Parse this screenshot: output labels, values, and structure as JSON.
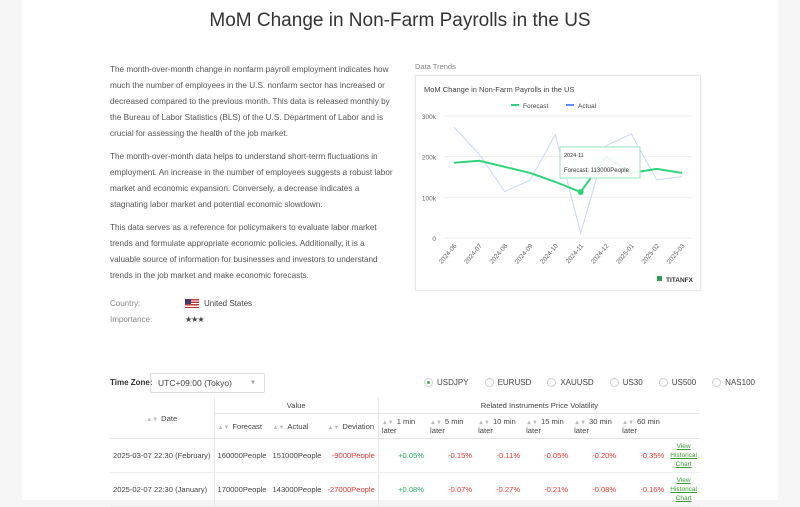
{
  "title": "MoM Change in Non-Farm Payrolls in the US",
  "description": [
    "The month-over-month change in nonfarm payroll employment indicates how much the number of employees in the U.S. nonfarm sector has increased or decreased compared to the previous month. This data is released monthly by the Bureau of Labor Statistics (BLS) of the U.S. Department of Labor and is crucial for assessing the health of the job market.",
    "The month-over-month data helps to understand short-term fluctuations in employment. An increase in the number of employees suggests a robust labor market and economic expansion. Conversely, a decrease indicates a stagnating labor market and potential economic slowdown.",
    "This data serves as a reference for policymakers to evaluate labor market trends and formulate appropriate economic policies. Additionally, it is a valuable source of information for businesses and investors to understand trends in the job market and make economic forecasts."
  ],
  "meta": {
    "country_label": "Country:",
    "country": "United States",
    "importance_label": "Importance:",
    "importance_stars": "★★★",
    "importance_level": 3
  },
  "data_trends_label": "Data Trends",
  "chart_data": {
    "type": "line",
    "title": "MoM Change in Non-Farm Payrolls in the US",
    "categories": [
      "2024-06",
      "2024-07",
      "2024-08",
      "2024-09",
      "2024-10",
      "2024-11",
      "2024-12",
      "2025-01",
      "2025-02",
      "2025-03"
    ],
    "series": [
      {
        "name": "Forecast",
        "color": "#2ed47a",
        "values": [
          185000,
          190000,
          175000,
          160000,
          138000,
          113000,
          200000,
          160000,
          170000,
          160000
        ]
      },
      {
        "name": "Actual",
        "color": "#5b8ff9",
        "values": [
          272000,
          206000,
          114000,
          142000,
          254000,
          12000,
          227000,
          256000,
          143000,
          151000
        ]
      }
    ],
    "yticks": [
      "0",
      "100k",
      "200k",
      "300k"
    ],
    "ylim": [
      0,
      300000
    ],
    "grid": true,
    "legend": "top-center",
    "tooltip": {
      "title": "2024-11",
      "text": "Forecast: 113000People"
    },
    "watermark": "TITANFX"
  },
  "timezone": {
    "label": "Time Zone:",
    "value": "UTC+09:00 (Tokyo)"
  },
  "instruments": [
    {
      "label": "USDJPY",
      "selected": true
    },
    {
      "label": "EURUSD"
    },
    {
      "label": "XAUUSD"
    },
    {
      "label": "US30"
    },
    {
      "label": "US500"
    },
    {
      "label": "NAS100"
    }
  ],
  "table": {
    "date": "Date",
    "value": "Value",
    "volatility": "Related Instruments Price Volatility",
    "cols": [
      "Forecast",
      "Actual",
      "Deviation"
    ],
    "vcols": [
      "1 min later",
      "5 min later",
      "10 min later",
      "15 min later",
      "30 min later",
      "60 min later"
    ],
    "rows": [
      {
        "date": "2025-03-07 22:30 (February)",
        "forecast": "160000People",
        "actual": "151000People",
        "deviation": "-9000People",
        "v": [
          "+0.05%",
          "-0.15%",
          "-0.11%",
          "-0.05%",
          "-0.20%",
          "-0.35%"
        ],
        "link": "View Historical Chart"
      },
      {
        "date": "2025-02-07 22:30 (January)",
        "forecast": "170000People",
        "actual": "143000People",
        "deviation": "-27000People",
        "v": [
          "+0.08%",
          "-0.07%",
          "-0.27%",
          "-0.21%",
          "-0.08%",
          "-0.16%"
        ],
        "link": "View Historical Chart"
      }
    ]
  }
}
